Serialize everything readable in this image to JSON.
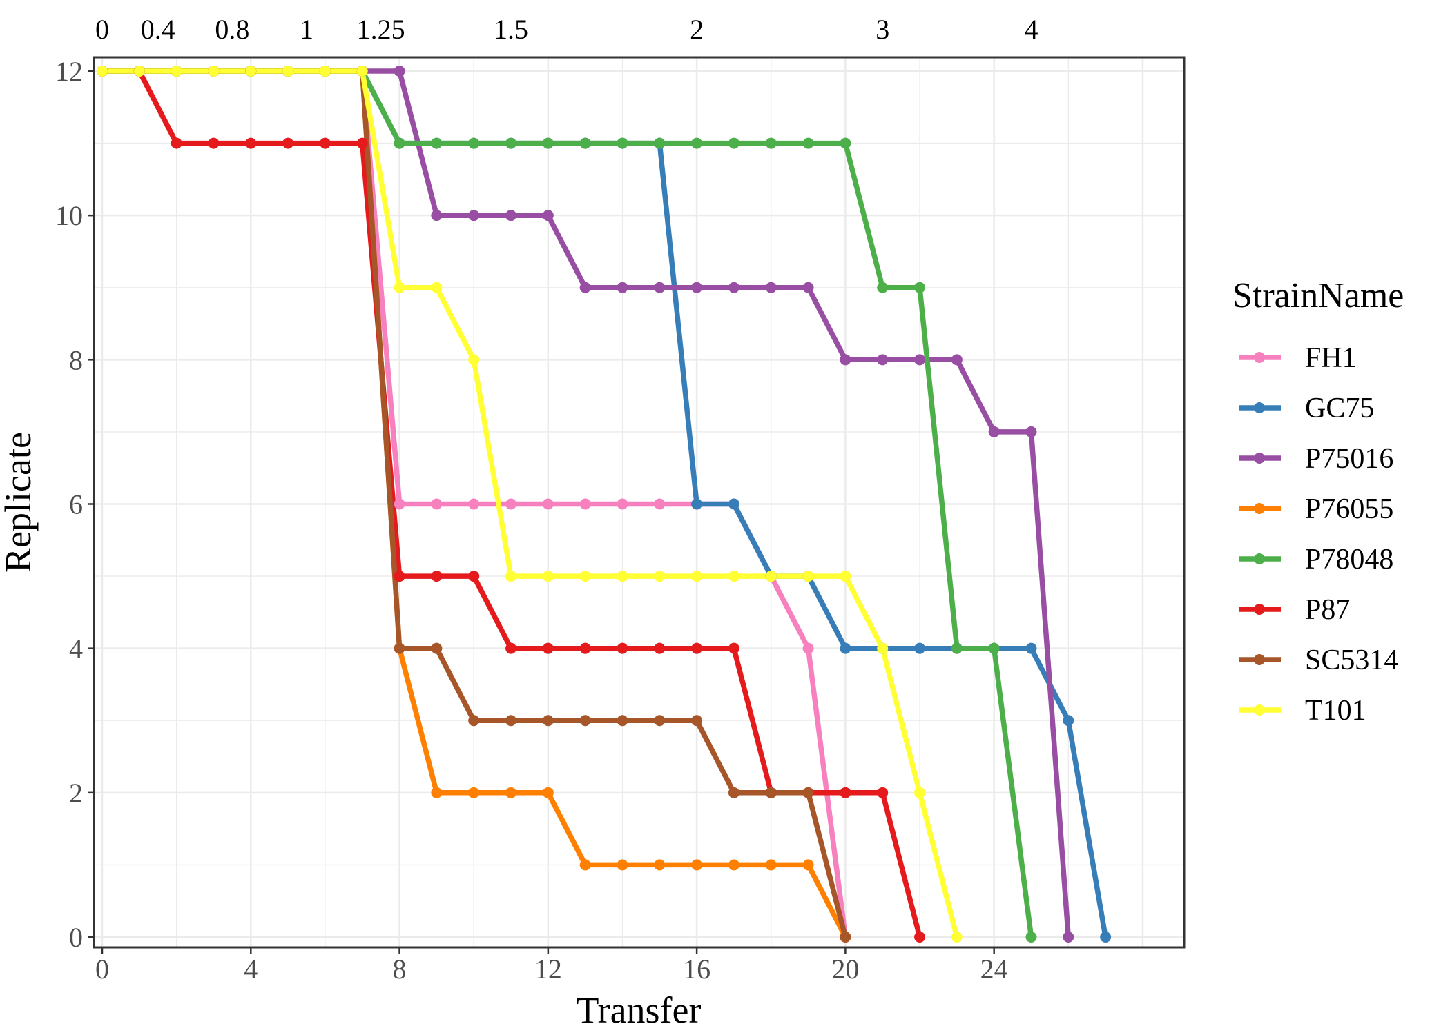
{
  "chart_data": {
    "type": "line",
    "xlabel": "Transfer",
    "ylabel": "Replicate",
    "xlim": [
      0,
      29
    ],
    "ylim": [
      0,
      12
    ],
    "x_ticks": [
      "0",
      "4",
      "8",
      "12",
      "16",
      "20",
      "24"
    ],
    "y_ticks": [
      "0",
      "2",
      "4",
      "6",
      "8",
      "10",
      "12"
    ],
    "grid": true,
    "secondary_x_axis": {
      "position": "top",
      "labels": [
        {
          "x": 0,
          "label": "0"
        },
        {
          "x": 1.5,
          "label": "0.4"
        },
        {
          "x": 3.5,
          "label": "0.8"
        },
        {
          "x": 5.5,
          "label": "1"
        },
        {
          "x": 7.5,
          "label": "1.25"
        },
        {
          "x": 11,
          "label": "1.5"
        },
        {
          "x": 16,
          "label": "2"
        },
        {
          "x": 21,
          "label": "3"
        },
        {
          "x": 25,
          "label": "4"
        }
      ]
    },
    "legend": {
      "title": "StrainName",
      "position": "right"
    },
    "series": [
      {
        "name": "FH1",
        "color": "#f781bf",
        "x": [
          0,
          1,
          2,
          3,
          4,
          5,
          6,
          7,
          8,
          9,
          10,
          11,
          12,
          13,
          14,
          15,
          16,
          17,
          18,
          19,
          20
        ],
        "y": [
          12,
          12,
          12,
          12,
          12,
          12,
          12,
          12,
          6,
          6,
          6,
          6,
          6,
          6,
          6,
          6,
          6,
          6,
          5,
          4,
          0
        ]
      },
      {
        "name": "GC75",
        "color": "#377eb8",
        "x": [
          0,
          1,
          2,
          3,
          4,
          5,
          6,
          7,
          8,
          9,
          10,
          11,
          12,
          13,
          14,
          15,
          16,
          17,
          18,
          19,
          20,
          21,
          22,
          23,
          24,
          25,
          26,
          27
        ],
        "y": [
          12,
          12,
          12,
          12,
          12,
          12,
          12,
          12,
          11,
          11,
          11,
          11,
          11,
          11,
          11,
          11,
          6,
          6,
          5,
          5,
          4,
          4,
          4,
          4,
          4,
          4,
          3,
          0
        ]
      },
      {
        "name": "P75016",
        "color": "#984ea3",
        "x": [
          0,
          1,
          2,
          3,
          4,
          5,
          6,
          7,
          8,
          9,
          10,
          11,
          12,
          13,
          14,
          15,
          16,
          17,
          18,
          19,
          20,
          21,
          22,
          23,
          24,
          25,
          26
        ],
        "y": [
          12,
          12,
          12,
          12,
          12,
          12,
          12,
          12,
          12,
          10,
          10,
          10,
          10,
          9,
          9,
          9,
          9,
          9,
          9,
          9,
          8,
          8,
          8,
          8,
          7,
          7,
          0
        ]
      },
      {
        "name": "P76055",
        "color": "#ff7f00",
        "x": [
          0,
          1,
          2,
          3,
          4,
          5,
          6,
          7,
          8,
          9,
          10,
          11,
          12,
          13,
          14,
          15,
          16,
          17,
          18,
          19,
          20
        ],
        "y": [
          12,
          12,
          12,
          12,
          12,
          12,
          12,
          12,
          4,
          2,
          2,
          2,
          2,
          1,
          1,
          1,
          1,
          1,
          1,
          1,
          0
        ]
      },
      {
        "name": "P78048",
        "color": "#4daf4a",
        "x": [
          0,
          1,
          2,
          3,
          4,
          5,
          6,
          7,
          8,
          9,
          10,
          11,
          12,
          13,
          14,
          15,
          16,
          17,
          18,
          19,
          20,
          21,
          22,
          23,
          24,
          25
        ],
        "y": [
          12,
          12,
          12,
          12,
          12,
          12,
          12,
          12,
          11,
          11,
          11,
          11,
          11,
          11,
          11,
          11,
          11,
          11,
          11,
          11,
          11,
          9,
          9,
          4,
          4,
          0
        ]
      },
      {
        "name": "P87",
        "color": "#e41a1c",
        "x": [
          0,
          1,
          2,
          3,
          4,
          5,
          6,
          7,
          8,
          9,
          10,
          11,
          12,
          13,
          14,
          15,
          16,
          17,
          18,
          19,
          20,
          21,
          22
        ],
        "y": [
          12,
          12,
          11,
          11,
          11,
          11,
          11,
          11,
          5,
          5,
          5,
          4,
          4,
          4,
          4,
          4,
          4,
          4,
          2,
          2,
          2,
          2,
          0
        ]
      },
      {
        "name": "SC5314",
        "color": "#a65628",
        "x": [
          0,
          1,
          2,
          3,
          4,
          5,
          6,
          7,
          8,
          9,
          10,
          11,
          12,
          13,
          14,
          15,
          16,
          17,
          18,
          19,
          20
        ],
        "y": [
          12,
          12,
          12,
          12,
          12,
          12,
          12,
          12,
          4,
          4,
          3,
          3,
          3,
          3,
          3,
          3,
          3,
          2,
          2,
          2,
          0
        ]
      },
      {
        "name": "T101",
        "color": "#ffff33",
        "x": [
          0,
          1,
          2,
          3,
          4,
          5,
          6,
          7,
          8,
          9,
          10,
          11,
          12,
          13,
          14,
          15,
          16,
          17,
          18,
          19,
          20,
          21,
          22,
          23
        ],
        "y": [
          12,
          12,
          12,
          12,
          12,
          12,
          12,
          12,
          9,
          9,
          8,
          5,
          5,
          5,
          5,
          5,
          5,
          5,
          5,
          5,
          5,
          4,
          2,
          0
        ]
      }
    ]
  }
}
